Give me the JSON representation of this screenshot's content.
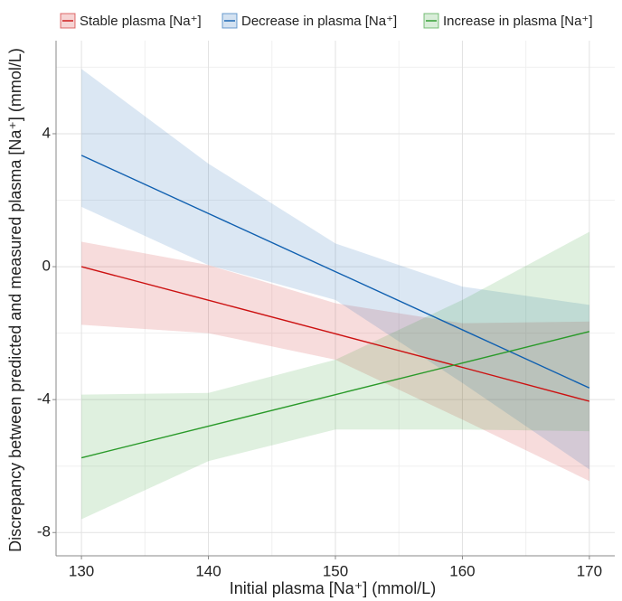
{
  "chart_data": {
    "type": "line",
    "x_label": "Initial plasma [Na⁺] (mmol/L)",
    "y_label": "Discrepancy between predicted and measured plasma [Na⁺] (mmol/L)",
    "x": [
      130,
      140,
      150,
      160,
      170
    ],
    "series": [
      {
        "name": "Stable plasma [Na⁺]",
        "color": "#cc1111",
        "values": [
          0,
          -1.01,
          -2.02,
          -3.03,
          -4.05
        ],
        "upper": [
          0.75,
          0.05,
          -1.1,
          -1.7,
          -1.65
        ],
        "lower": [
          -1.75,
          -2.0,
          -2.8,
          -4.6,
          -6.45
        ]
      },
      {
        "name": "Decrease in plasma [Na⁺]",
        "color": "#1060b0",
        "values": [
          3.35,
          1.6,
          -0.15,
          -1.9,
          -3.65
        ],
        "upper": [
          5.95,
          3.1,
          0.7,
          -0.6,
          -1.15
        ],
        "lower": [
          1.8,
          0.05,
          -1.0,
          -3.5,
          -6.1
        ]
      },
      {
        "name": "Increase in plasma [Na⁺]",
        "color": "#2a9a2a",
        "values": [
          -5.75,
          -4.8,
          -3.85,
          -2.9,
          -1.95
        ],
        "upper": [
          -3.85,
          -3.8,
          -2.8,
          -1.0,
          1.05
        ],
        "lower": [
          -7.6,
          -5.85,
          -4.9,
          -4.9,
          -4.95
        ]
      }
    ],
    "xlim": [
      128,
      172
    ],
    "ylim": [
      -8.7,
      6.8
    ],
    "xticks": [
      130,
      140,
      150,
      160,
      170
    ],
    "yticks": [
      -8,
      -4,
      0,
      4
    ],
    "xminorticks": [
      135,
      145,
      155,
      165
    ],
    "yminorticks": [
      -6,
      -2,
      2,
      6
    ],
    "grid": true
  }
}
